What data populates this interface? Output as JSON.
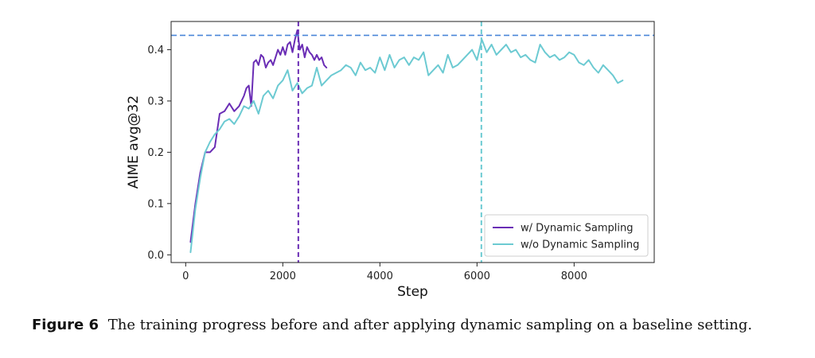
{
  "chart_data": {
    "type": "line",
    "xlabel": "Step",
    "ylabel": "AIME avg@32",
    "xlim": [
      -300,
      9650
    ],
    "ylim": [
      -0.015,
      0.455
    ],
    "xticks": [
      0,
      2000,
      4000,
      6000,
      8000
    ],
    "yticks": [
      0.0,
      0.1,
      0.2,
      0.3,
      0.4
    ],
    "grid": false,
    "legend_position": "bottom-right",
    "reference_lines": {
      "horizontal_y": 0.428,
      "vertical_x": [
        2320,
        6090
      ]
    },
    "series": [
      {
        "name": "w/ Dynamic Sampling",
        "color": "#6a2db5",
        "x": [
          100,
          200,
          300,
          400,
          500,
          600,
          700,
          800,
          900,
          1000,
          1100,
          1200,
          1250,
          1300,
          1350,
          1400,
          1450,
          1500,
          1550,
          1600,
          1650,
          1700,
          1750,
          1800,
          1850,
          1900,
          1950,
          2000,
          2050,
          2100,
          2150,
          2200,
          2250,
          2300,
          2350,
          2400,
          2450,
          2500,
          2550,
          2600,
          2650,
          2700,
          2750,
          2800,
          2850,
          2900
        ],
        "y": [
          0.025,
          0.1,
          0.16,
          0.2,
          0.2,
          0.21,
          0.275,
          0.28,
          0.295,
          0.28,
          0.29,
          0.31,
          0.325,
          0.33,
          0.29,
          0.375,
          0.38,
          0.37,
          0.39,
          0.385,
          0.365,
          0.375,
          0.38,
          0.37,
          0.385,
          0.4,
          0.39,
          0.405,
          0.39,
          0.41,
          0.415,
          0.395,
          0.42,
          0.438,
          0.4,
          0.41,
          0.385,
          0.405,
          0.395,
          0.39,
          0.38,
          0.39,
          0.38,
          0.385,
          0.37,
          0.365
        ]
      },
      {
        "name": "w/o Dynamic Sampling",
        "color": "#6ccad2",
        "x": [
          100,
          200,
          300,
          400,
          500,
          600,
          700,
          800,
          900,
          1000,
          1100,
          1200,
          1300,
          1400,
          1500,
          1600,
          1700,
          1800,
          1900,
          2000,
          2100,
          2200,
          2300,
          2400,
          2500,
          2600,
          2700,
          2800,
          2900,
          3000,
          3100,
          3200,
          3300,
          3400,
          3500,
          3600,
          3700,
          3800,
          3900,
          4000,
          4100,
          4200,
          4300,
          4400,
          4500,
          4600,
          4700,
          4800,
          4900,
          5000,
          5100,
          5200,
          5300,
          5400,
          5500,
          5600,
          5700,
          5800,
          5900,
          6000,
          6100,
          6200,
          6300,
          6400,
          6500,
          6600,
          6700,
          6800,
          6900,
          7000,
          7100,
          7200,
          7300,
          7400,
          7500,
          7600,
          7700,
          7800,
          7900,
          8000,
          8100,
          8200,
          8300,
          8400,
          8500,
          8600,
          8700,
          8800,
          8900,
          9000
        ],
        "y": [
          0.005,
          0.09,
          0.15,
          0.2,
          0.22,
          0.235,
          0.245,
          0.26,
          0.265,
          0.255,
          0.27,
          0.29,
          0.285,
          0.3,
          0.275,
          0.31,
          0.32,
          0.305,
          0.33,
          0.34,
          0.36,
          0.32,
          0.335,
          0.315,
          0.325,
          0.33,
          0.365,
          0.33,
          0.34,
          0.35,
          0.355,
          0.36,
          0.37,
          0.365,
          0.35,
          0.375,
          0.36,
          0.365,
          0.355,
          0.385,
          0.36,
          0.39,
          0.365,
          0.38,
          0.385,
          0.37,
          0.385,
          0.38,
          0.395,
          0.35,
          0.36,
          0.37,
          0.355,
          0.39,
          0.365,
          0.37,
          0.38,
          0.39,
          0.4,
          0.38,
          0.42,
          0.395,
          0.41,
          0.39,
          0.4,
          0.41,
          0.395,
          0.4,
          0.385,
          0.39,
          0.38,
          0.375,
          0.41,
          0.395,
          0.385,
          0.39,
          0.38,
          0.385,
          0.395,
          0.39,
          0.375,
          0.37,
          0.38,
          0.365,
          0.355,
          0.37,
          0.36,
          0.35,
          0.335,
          0.34
        ]
      }
    ]
  },
  "caption": {
    "label": "Figure 6",
    "text": "The training progress before and after applying dynamic sampling on a baseline setting."
  }
}
